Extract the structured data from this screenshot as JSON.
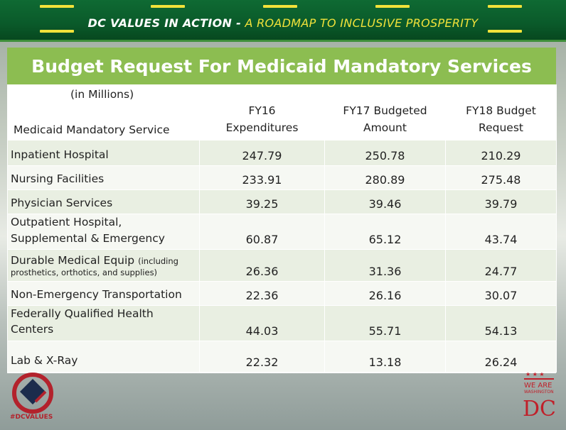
{
  "banner": {
    "title_bold": "DC VALUES IN ACTION -",
    "title_sub": " A ROADMAP TO INCLUSIVE PROSPERITY"
  },
  "table": {
    "title": "Budget Request For Medicaid Mandatory Services",
    "header": {
      "units": "(in Millions)",
      "service": "Medicaid Mandatory Service",
      "fy16_line1": "FY16",
      "fy16_line2": "Expenditures",
      "fy17_line1": "FY17 Budgeted",
      "fy17_line2": "Amount",
      "fy18_line1": "FY18 Budget",
      "fy18_line2": "Request"
    },
    "rows": [
      {
        "name": "Inpatient Hospital",
        "fy16": "247.79",
        "fy17": "250.78",
        "fy18": "210.29"
      },
      {
        "name": "Nursing Facilities",
        "fy16": "233.91",
        "fy17": "280.89",
        "fy18": "275.48"
      },
      {
        "name": "Physician Services",
        "fy16": "39.25",
        "fy17": "39.46",
        "fy18": "39.79"
      },
      {
        "name_line1": "Outpatient Hospital,",
        "name_line2": "Supplemental & Emergency",
        "fy16": "60.87",
        "fy17": "65.12",
        "fy18": "43.74"
      },
      {
        "name_main": "Durable Medical Equip",
        "name_note1": "(including",
        "name_note2": "prosthetics, orthotics, and supplies)",
        "fy16": "26.36",
        "fy17": "31.36",
        "fy18": "24.77"
      },
      {
        "name": "Non-Emergency Transportation",
        "fy16": "22.36",
        "fy17": "26.16",
        "fy18": "30.07"
      },
      {
        "name_line1": "Federally Qualified Health",
        "name_line2": "Centers",
        "fy16": "44.03",
        "fy17": "55.71",
        "fy18": "54.13"
      },
      {
        "name": "Lab & X-Ray",
        "fy16": "22.32",
        "fy17": "13.18",
        "fy18": "26.24"
      }
    ]
  },
  "footer": {
    "hashtag": "#DCVALUES",
    "right_logo_line1": "WE ARE",
    "right_logo_line2": "WASHINGTON",
    "right_logo_line3": "DC"
  }
}
